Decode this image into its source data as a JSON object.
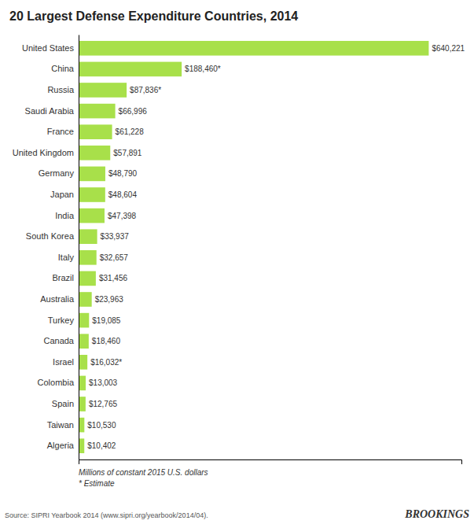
{
  "chart_data": {
    "type": "bar",
    "title": "20 Largest Defense Expenditure Countries, 2014",
    "orientation": "horizontal",
    "categories": [
      "United States",
      "China",
      "Russia",
      "Saudi Arabia",
      "France",
      "United Kingdom",
      "Germany",
      "Japan",
      "India",
      "South Korea",
      "Italy",
      "Brazil",
      "Australia",
      "Turkey",
      "Canada",
      "Israel",
      "Colombia",
      "Spain",
      "Taiwan",
      "Algeria"
    ],
    "values": [
      640221,
      188460,
      87836,
      66996,
      61228,
      57891,
      48790,
      48604,
      47398,
      33937,
      32657,
      31456,
      23963,
      19085,
      18460,
      16032,
      13003,
      12765,
      10530,
      10402
    ],
    "value_labels": [
      "$640,221",
      "$188,460*",
      "$87,836*",
      "$66,996",
      "$61,228",
      "$57,891",
      "$48,790",
      "$48,604",
      "$47,398",
      "$33,937",
      "$32,657",
      "$31,456",
      "$23,963",
      "$19,085",
      "$18,460",
      "$16,032*",
      "$13,003",
      "$12,765",
      "$10,530",
      "$10,402"
    ],
    "data_labels": true,
    "color": "#a8e04a",
    "xlim": [
      0,
      700000
    ],
    "xticks": [],
    "tick_labels": "y",
    "grid": false,
    "annotations": [
      "Millions of constant 2015 U.S. dollars",
      "* Estimate",
      "Source: SIPRI Yearbook 2014 (www.sipri.org/yearbook/2014/04).",
      "BROOKINGS"
    ]
  }
}
